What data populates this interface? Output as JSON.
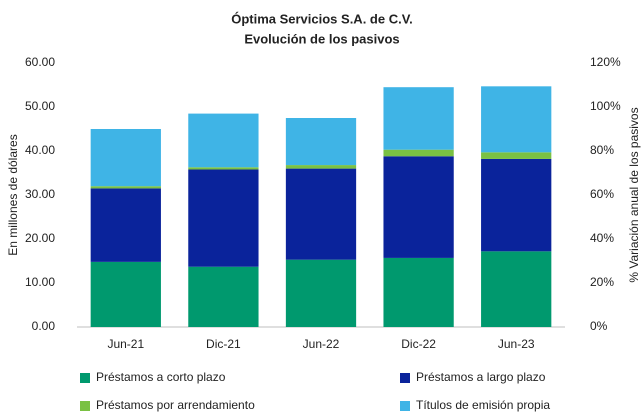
{
  "chart_data": {
    "type": "bar",
    "stacked": true,
    "title": "Óptima Servicios S.A. de C.V.",
    "subtitle": "Evolución de los pasivos",
    "y_label": "En millones de dólares",
    "y2_label": "% Variación anual de los pasivos",
    "categories": [
      "Jun-21",
      "Dic-21",
      "Jun-22",
      "Dic-22",
      "Jun-23"
    ],
    "series": [
      {
        "name": "Préstamos a corto plazo",
        "color": "#00996e",
        "values": [
          14.8,
          13.7,
          15.3,
          15.7,
          17.2
        ]
      },
      {
        "name": "Préstamos a largo plazo",
        "color": "#0a239b",
        "values": [
          16.7,
          22.1,
          20.7,
          23.1,
          21.0
        ]
      },
      {
        "name": "Préstamos por arrendamiento",
        "color": "#7ac143",
        "values": [
          0.5,
          0.5,
          0.8,
          1.5,
          1.5
        ]
      },
      {
        "name": "Títulos de emisión propia",
        "color": "#3fb4e6",
        "values": [
          13.0,
          12.2,
          10.7,
          14.2,
          15.0
        ]
      }
    ],
    "ylim": [
      0,
      60
    ],
    "yticks": [
      {
        "value": 0,
        "label": "0.00"
      },
      {
        "value": 10,
        "label": "10.00"
      },
      {
        "value": 20,
        "label": "20.00"
      },
      {
        "value": 30,
        "label": "30.00"
      },
      {
        "value": 40,
        "label": "40.00"
      },
      {
        "value": 50,
        "label": "50.00"
      },
      {
        "value": 60,
        "label": "60.00"
      }
    ],
    "y2lim": [
      0,
      120
    ],
    "y2ticks": [
      {
        "value": 0,
        "label": "0%"
      },
      {
        "value": 20,
        "label": "20%"
      },
      {
        "value": 40,
        "label": "40%"
      },
      {
        "value": 60,
        "label": "60%"
      },
      {
        "value": 80,
        "label": "80%"
      },
      {
        "value": 100,
        "label": "100%"
      },
      {
        "value": 120,
        "label": "120%"
      }
    ],
    "grid": false,
    "legend": "bottom"
  }
}
